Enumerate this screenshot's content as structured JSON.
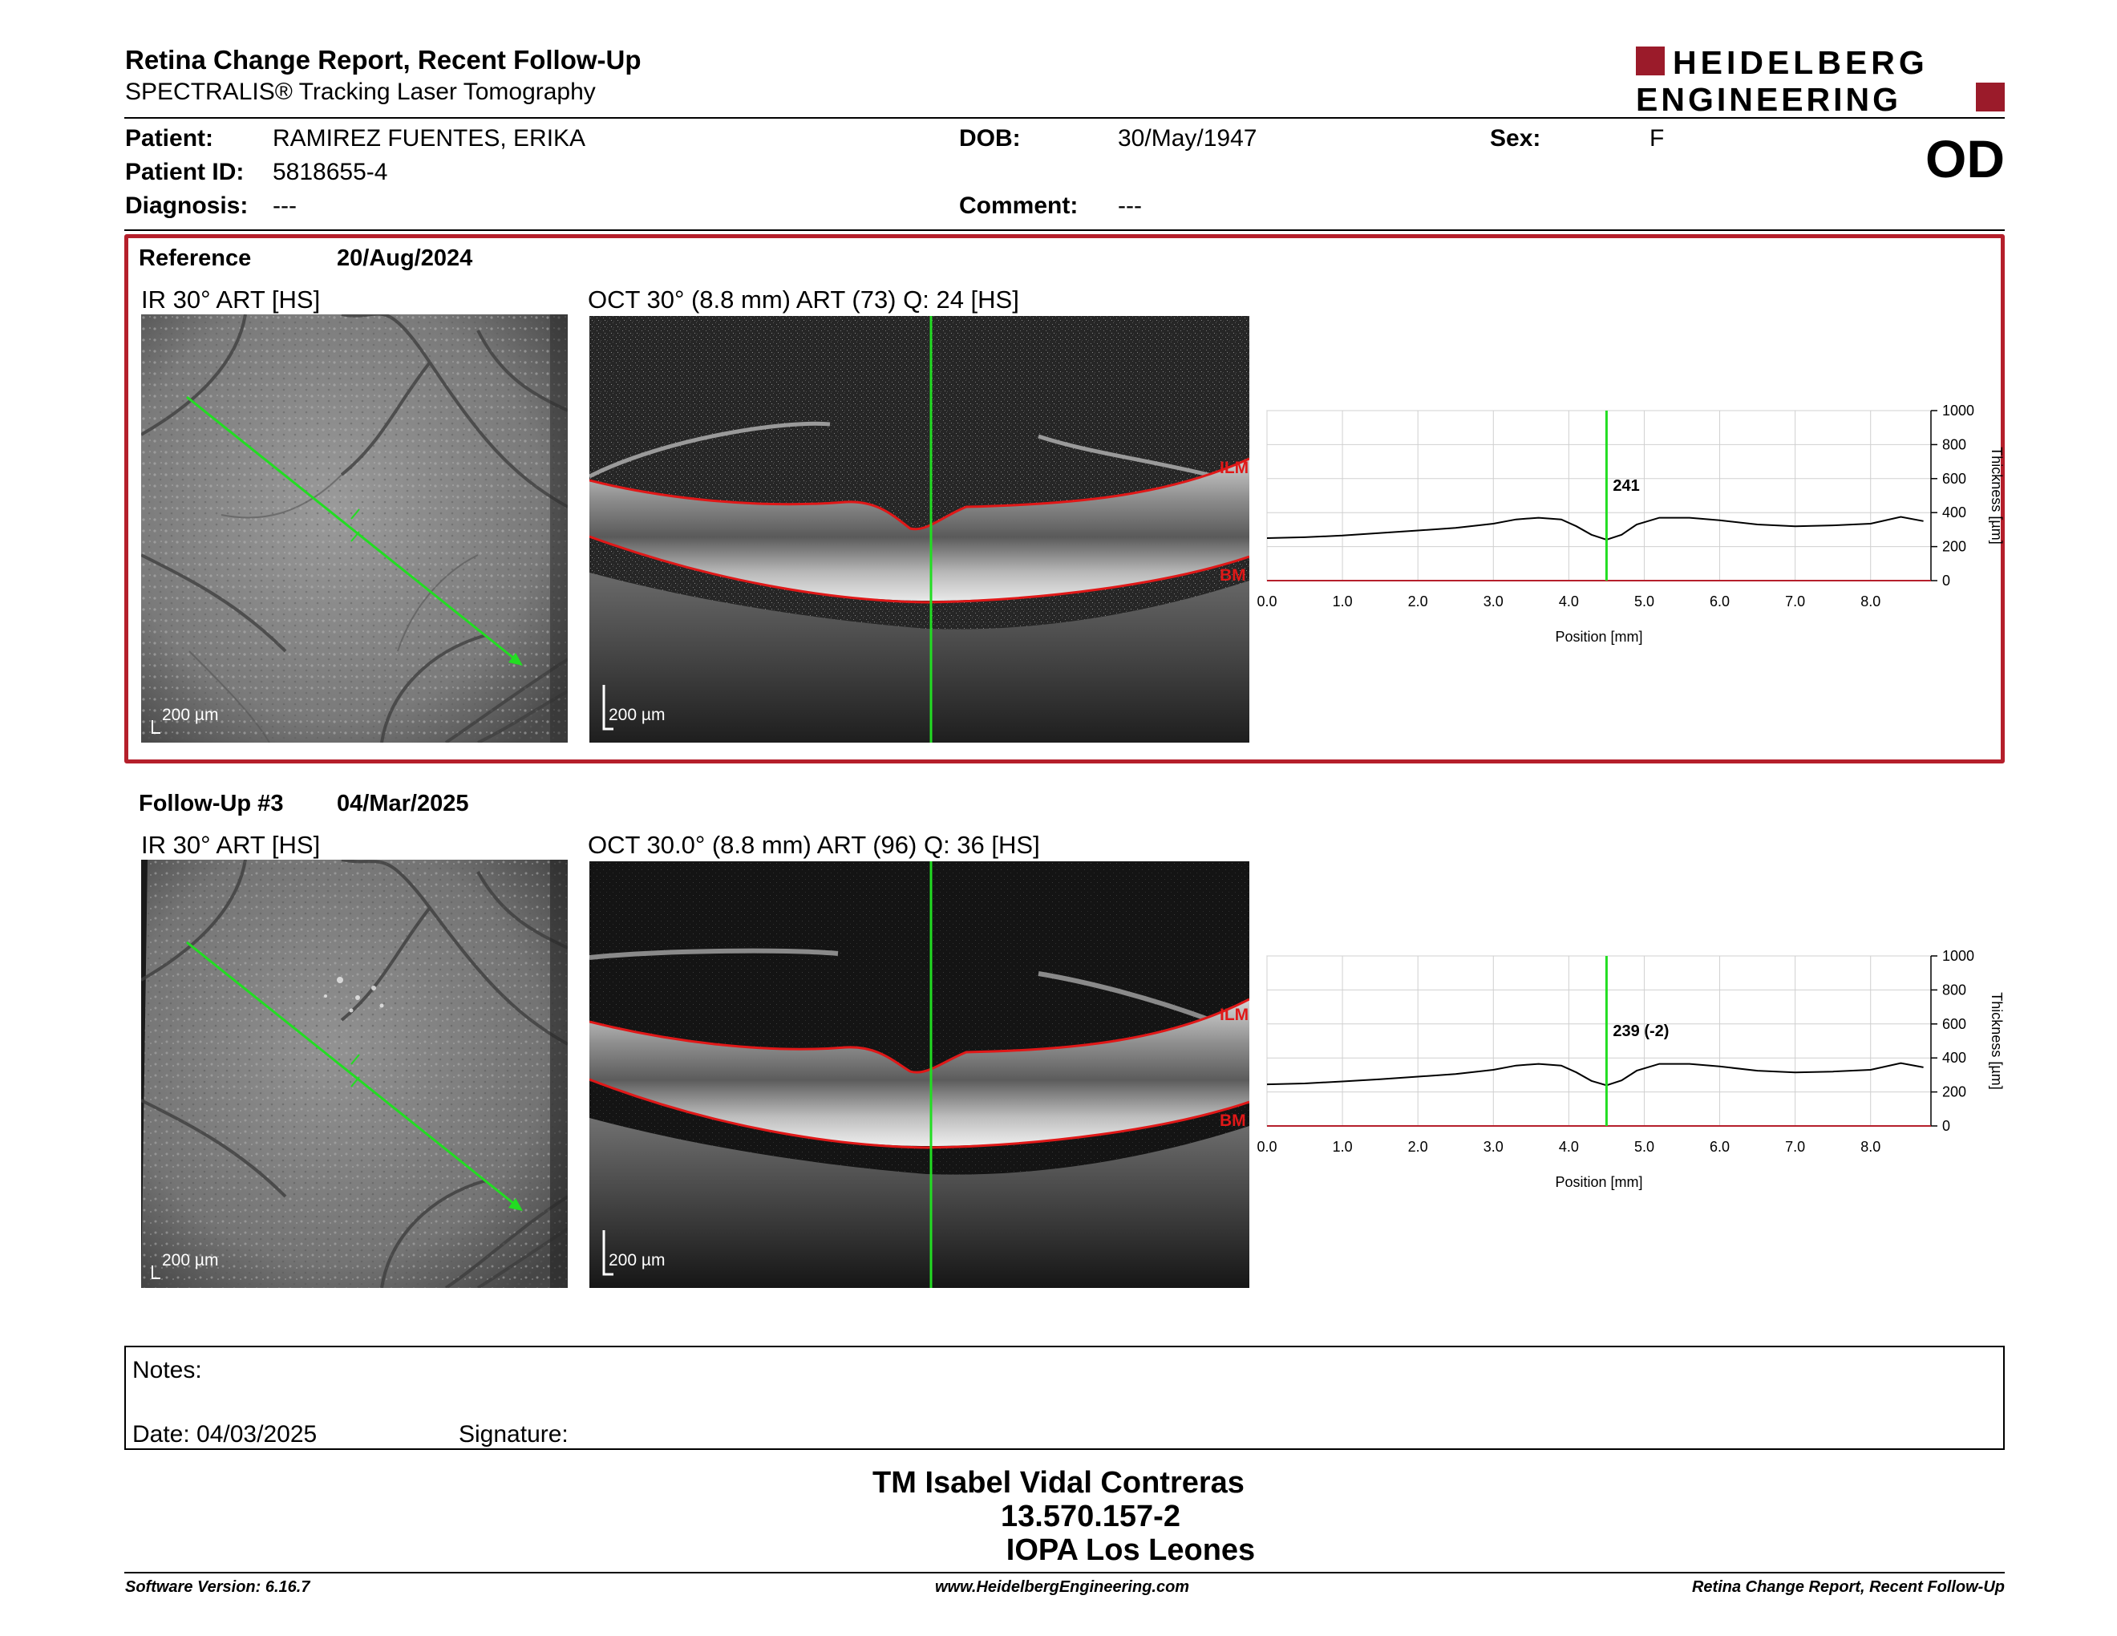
{
  "header": {
    "title": "Retina Change Report, Recent Follow-Up",
    "subtitle": "SPECTRALIS® Tracking Laser Tomography",
    "logo_line1": "HEIDELBERG",
    "logo_line2": "ENGINEERING",
    "eye": "OD"
  },
  "patient": {
    "patient_label": "Patient:",
    "patient_value": "RAMIREZ FUENTES, ERIKA",
    "id_label": "Patient ID:",
    "id_value": "5818655-4",
    "diagnosis_label": "Diagnosis:",
    "diagnosis_value": "---",
    "dob_label": "DOB:",
    "dob_value": "30/May/1947",
    "comment_label": "Comment:",
    "comment_value": "---",
    "sex_label": "Sex:",
    "sex_value": "F"
  },
  "reference": {
    "label": "Reference",
    "date": "20/Aug/2024",
    "ir_label": "IR 30° ART [HS]",
    "oct_label": "OCT 30° (8.8 mm) ART (73) Q: 24 [HS]",
    "scale": "200 µm",
    "ilm": "ILM",
    "bm": "BM"
  },
  "followup": {
    "label": "Follow-Up #3",
    "date": "04/Mar/2025",
    "ir_label": "IR 30° ART [HS]",
    "oct_label": "OCT 30.0° (8.8 mm) ART (96) Q: 36 [HS]",
    "scale": "200 µm",
    "ilm": "ILM",
    "bm": "BM"
  },
  "chart_data": [
    {
      "type": "line",
      "xlabel": "Position [mm]",
      "ylabel": "Thickness [µm]",
      "xlim": [
        0.0,
        8.8
      ],
      "ylim": [
        0,
        1000
      ],
      "xticks": [
        "0.0",
        "1.0",
        "2.0",
        "3.0",
        "4.0",
        "5.0",
        "6.0",
        "7.0",
        "8.0"
      ],
      "yticks": [
        "0",
        "200",
        "400",
        "600",
        "800",
        "1000"
      ],
      "marker_x": 4.5,
      "marker_label": "241",
      "x": [
        0.0,
        0.5,
        1.0,
        1.5,
        2.0,
        2.5,
        3.0,
        3.3,
        3.6,
        3.9,
        4.1,
        4.3,
        4.5,
        4.7,
        4.9,
        5.2,
        5.6,
        6.0,
        6.5,
        7.0,
        7.5,
        8.0,
        8.4,
        8.7
      ],
      "values": [
        250,
        255,
        265,
        280,
        295,
        310,
        335,
        360,
        370,
        360,
        320,
        270,
        241,
        270,
        330,
        370,
        370,
        355,
        330,
        320,
        325,
        335,
        375,
        350
      ]
    },
    {
      "type": "line",
      "xlabel": "Position [mm]",
      "ylabel": "Thickness [µm]",
      "xlim": [
        0.0,
        8.8
      ],
      "ylim": [
        0,
        1000
      ],
      "xticks": [
        "0.0",
        "1.0",
        "2.0",
        "3.0",
        "4.0",
        "5.0",
        "6.0",
        "7.0",
        "8.0"
      ],
      "yticks": [
        "0",
        "200",
        "400",
        "600",
        "800",
        "1000"
      ],
      "marker_x": 4.5,
      "marker_label": "239 (-2)",
      "x": [
        0.0,
        0.5,
        1.0,
        1.5,
        2.0,
        2.5,
        3.0,
        3.3,
        3.6,
        3.9,
        4.1,
        4.3,
        4.5,
        4.7,
        4.9,
        5.2,
        5.6,
        6.0,
        6.5,
        7.0,
        7.5,
        8.0,
        8.4,
        8.7
      ],
      "values": [
        245,
        250,
        262,
        275,
        290,
        305,
        330,
        355,
        365,
        355,
        315,
        265,
        239,
        268,
        325,
        365,
        365,
        350,
        325,
        315,
        320,
        330,
        370,
        345
      ]
    }
  ],
  "notes": {
    "notes_label": "Notes:",
    "date_label": "Date: 04/03/2025",
    "signature_label": "Signature:"
  },
  "signature_block": {
    "line1": "TM Isabel Vidal Contreras",
    "line2": "13.570.157-2",
    "line3": "IOPA Los Leones"
  },
  "footer": {
    "left": "Software Version: 6.16.7",
    "center": "www.HeidelbergEngineering.com",
    "right": "Retina Change Report, Recent Follow-Up"
  },
  "colors": {
    "accent": "#b51f2b",
    "scan_line": "#22dd22",
    "segmentation": "#e01818"
  }
}
